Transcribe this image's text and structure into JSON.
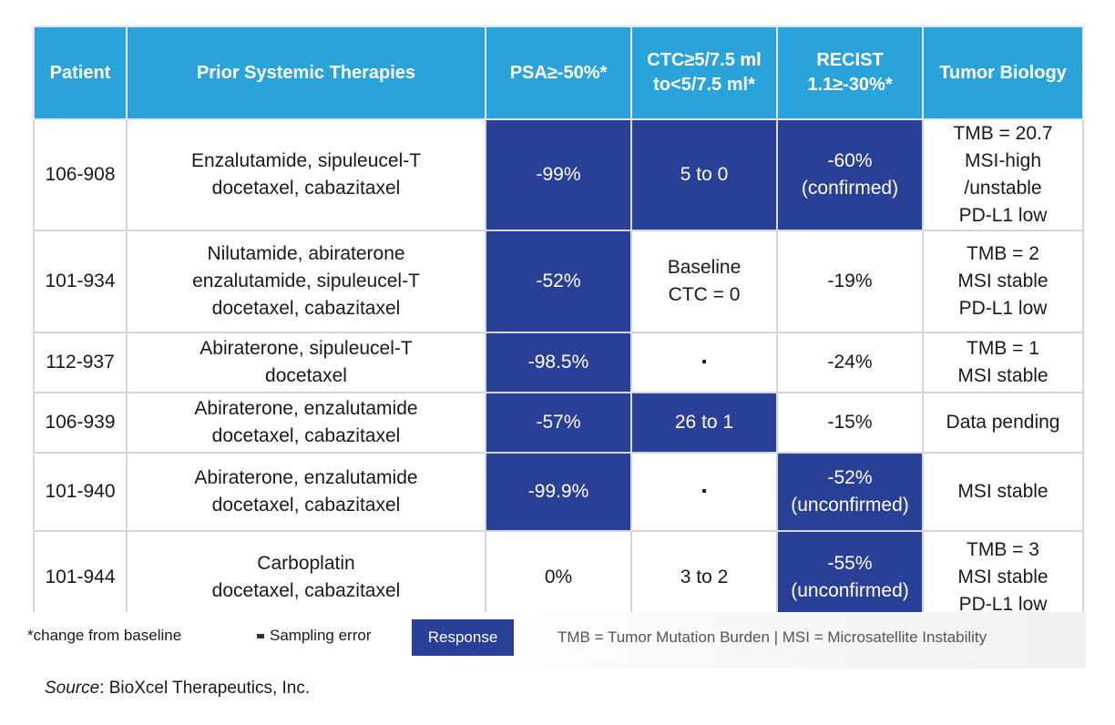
{
  "table": {
    "headers": [
      [
        "Patient"
      ],
      [
        "Prior Systemic Therapies"
      ],
      [
        "PSA",
        "≥-50%*"
      ],
      [
        "CTC",
        "≥5/7.5 ml to",
        "<5/7.5 ml*"
      ],
      [
        "RECIST 1.1",
        "≥-30%*"
      ],
      [
        "Tumor Biology"
      ]
    ],
    "rows": [
      {
        "patient": "106-908",
        "therapies": [
          "Enzalutamide, sipuleucel-T",
          "docetaxel, cabazitaxel"
        ],
        "psa": [
          "-99%"
        ],
        "ctc": [
          "5 to 0"
        ],
        "recist": [
          "-60%",
          "(confirmed)"
        ],
        "biology": [
          "TMB = 20.7",
          "MSI-high /unstable",
          "PD-L1 low"
        ]
      },
      {
        "patient": "101-934",
        "therapies": [
          "Nilutamide, abiraterone",
          "enzalutamide, sipuleucel-T",
          "docetaxel, cabazitaxel"
        ],
        "psa": [
          "-52%"
        ],
        "ctc": [
          "Baseline",
          "CTC = 0"
        ],
        "recist": [
          "-19%"
        ],
        "biology": [
          "TMB = 2",
          "MSI stable",
          "PD-L1 low"
        ]
      },
      {
        "patient": "112-937",
        "therapies": [
          "Abiraterone, sipuleucel-T",
          "docetaxel"
        ],
        "psa": [
          "-98.5%"
        ],
        "ctc": [
          "▪"
        ],
        "recist": [
          "-24%"
        ],
        "biology": [
          "TMB = 1",
          "MSI stable"
        ]
      },
      {
        "patient": "106-939",
        "therapies": [
          "Abiraterone, enzalutamide",
          "docetaxel, cabazitaxel"
        ],
        "psa": [
          "-57%"
        ],
        "ctc": [
          "26 to 1"
        ],
        "recist": [
          "-15%"
        ],
        "biology": [
          "Data pending"
        ]
      },
      {
        "patient": "101-940",
        "therapies": [
          "Abiraterone, enzalutamide",
          "docetaxel, cabazitaxel"
        ],
        "psa": [
          "-99.9%"
        ],
        "ctc": [
          "▪"
        ],
        "recist": [
          "-52%",
          "(unconfirmed)"
        ],
        "biology": [
          "MSI stable"
        ]
      },
      {
        "patient": "101-944",
        "therapies": [
          "Carboplatin",
          "docetaxel, cabazitaxel"
        ],
        "psa": [
          "0%"
        ],
        "ctc": [
          "3 to 2"
        ],
        "recist": [
          "-55%",
          "(unconfirmed)"
        ],
        "biology": [
          "TMB = 3",
          "MSI stable",
          "PD-L1 low"
        ]
      }
    ],
    "highlighted_cells": [
      [
        "psa",
        "ctc",
        "recist"
      ],
      [
        "psa"
      ],
      [
        "psa"
      ],
      [
        "psa",
        "ctc"
      ],
      [
        "psa",
        "recist"
      ],
      [
        "recist"
      ]
    ]
  },
  "legend": {
    "change_note": "*change from baseline",
    "sampling_note": "Sampling error",
    "response_label": "Response",
    "abbreviations": "TMB = Tumor Mutation Burden  |  MSI = Microsatellite Instability"
  },
  "source": {
    "label": "Source",
    "text": ": BioXcel Therapeutics, Inc."
  },
  "colors": {
    "header_bg": "#2aa3db",
    "response_bg": "#2a3f96"
  }
}
